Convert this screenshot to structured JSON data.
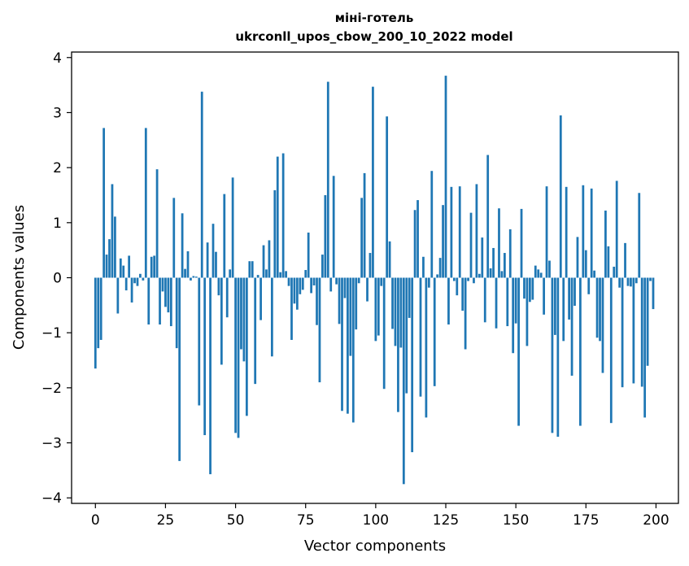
{
  "chart_data": {
    "type": "bar",
    "title": [
      "міні-готель",
      "ukrconll_upos_cbow_200_10_2022 model"
    ],
    "xlabel": "Vector components",
    "ylabel": "Components values",
    "xlim": [
      -8.5,
      208
    ],
    "ylim": [
      -4.1,
      4.1
    ],
    "xticks": [
      0,
      25,
      50,
      75,
      100,
      125,
      150,
      175,
      200
    ],
    "xtick_labels": [
      "0",
      "25",
      "50",
      "75",
      "100",
      "125",
      "150",
      "175",
      "200"
    ],
    "yticks": [
      -4,
      -3,
      -2,
      -1,
      0,
      1,
      2,
      3,
      4
    ],
    "ytick_labels": [
      "−4",
      "−3",
      "−2",
      "−1",
      "0",
      "1",
      "2",
      "3",
      "4"
    ],
    "bar_color": "#1f77b4",
    "grid": false,
    "x": [
      0,
      1,
      2,
      3,
      4,
      5,
      6,
      7,
      8,
      9,
      10,
      11,
      12,
      13,
      14,
      15,
      16,
      17,
      18,
      19,
      20,
      21,
      22,
      23,
      24,
      25,
      26,
      27,
      28,
      29,
      30,
      31,
      32,
      33,
      34,
      35,
      36,
      37,
      38,
      39,
      40,
      41,
      42,
      43,
      44,
      45,
      46,
      47,
      48,
      49,
      50,
      51,
      52,
      53,
      54,
      55,
      56,
      57,
      58,
      59,
      60,
      61,
      62,
      63,
      64,
      65,
      66,
      67,
      68,
      69,
      70,
      71,
      72,
      73,
      74,
      75,
      76,
      77,
      78,
      79,
      80,
      81,
      82,
      83,
      84,
      85,
      86,
      87,
      88,
      89,
      90,
      91,
      92,
      93,
      94,
      95,
      96,
      97,
      98,
      99,
      100,
      101,
      102,
      103,
      104,
      105,
      106,
      107,
      108,
      109,
      110,
      111,
      112,
      113,
      114,
      115,
      116,
      117,
      118,
      119,
      120,
      121,
      122,
      123,
      124,
      125,
      126,
      127,
      128,
      129,
      130,
      131,
      132,
      133,
      134,
      135,
      136,
      137,
      138,
      139,
      140,
      141,
      142,
      143,
      144,
      145,
      146,
      147,
      148,
      149,
      150,
      151,
      152,
      153,
      154,
      155,
      156,
      157,
      158,
      159,
      160,
      161,
      162,
      163,
      164,
      165,
      166,
      167,
      168,
      169,
      170,
      171,
      172,
      173,
      174,
      175,
      176,
      177,
      178,
      179,
      180,
      181,
      182,
      183,
      184,
      185,
      186,
      187,
      188,
      189,
      190,
      191,
      192,
      193,
      194,
      195,
      196,
      197,
      198,
      199
    ],
    "values": [
      -1.65,
      -1.28,
      -1.13,
      2.72,
      0.42,
      0.7,
      1.7,
      1.11,
      -0.65,
      0.35,
      0.22,
      -0.23,
      0.4,
      -0.45,
      -0.1,
      -0.15,
      0.07,
      -0.05,
      2.72,
      -0.85,
      0.38,
      0.4,
      1.97,
      -0.85,
      -0.25,
      -0.53,
      -0.63,
      -0.88,
      1.45,
      -1.28,
      -3.33,
      1.17,
      0.16,
      0.48,
      -0.05,
      0.03,
      0.02,
      -2.32,
      3.38,
      -2.86,
      0.64,
      -3.57,
      0.98,
      0.47,
      -0.32,
      -1.58,
      1.52,
      -0.72,
      0.15,
      1.82,
      -2.82,
      -2.91,
      -1.3,
      -1.52,
      -2.51,
      0.3,
      0.3,
      -1.93,
      0.05,
      -0.77,
      0.59,
      0.15,
      0.68,
      -1.43,
      1.59,
      2.2,
      0.1,
      2.26,
      0.12,
      -0.15,
      -1.13,
      -0.47,
      -0.58,
      -0.3,
      -0.22,
      0.14,
      0.82,
      -0.28,
      -0.14,
      -0.86,
      -1.9,
      0.42,
      1.5,
      3.56,
      -0.25,
      1.85,
      -0.12,
      -0.84,
      -2.42,
      -0.37,
      -2.47,
      -1.42,
      -2.63,
      -0.94,
      -0.1,
      1.45,
      1.9,
      -0.43,
      0.45,
      3.47,
      -1.15,
      -1.05,
      -0.15,
      -2.02,
      2.93,
      0.66,
      -0.93,
      -1.24,
      -2.44,
      -1.27,
      -3.75,
      -2.1,
      -0.73,
      -3.17,
      1.23,
      1.41,
      -2.16,
      0.38,
      -2.54,
      -0.18,
      1.94,
      -1.97,
      0.06,
      0.36,
      1.32,
      3.67,
      -0.85,
      1.65,
      -0.06,
      -0.32,
      1.66,
      -0.6,
      -1.3,
      -0.06,
      1.18,
      -0.1,
      1.7,
      0.07,
      0.73,
      -0.81,
      2.23,
      0.17,
      0.54,
      -0.92,
      1.26,
      0.12,
      0.45,
      -0.88,
      0.88,
      -1.37,
      -0.83,
      -2.69,
      1.25,
      -0.38,
      -1.24,
      -0.44,
      -0.4,
      0.22,
      0.15,
      0.09,
      -0.67,
      1.66,
      0.31,
      -2.82,
      -1.04,
      -2.89,
      2.95,
      -1.15,
      1.65,
      -0.76,
      -1.78,
      -0.51,
      0.74,
      -2.69,
      1.68,
      0.5,
      -0.3,
      1.62,
      0.13,
      -1.09,
      -1.15,
      -1.73,
      1.22,
      0.57,
      -2.64,
      0.2,
      1.76,
      -0.18,
      -1.99,
      0.63,
      -0.15,
      -0.16,
      -1.92,
      -0.1,
      1.54,
      -1.98,
      -2.54,
      -1.6,
      -0.06,
      -0.57
    ]
  }
}
